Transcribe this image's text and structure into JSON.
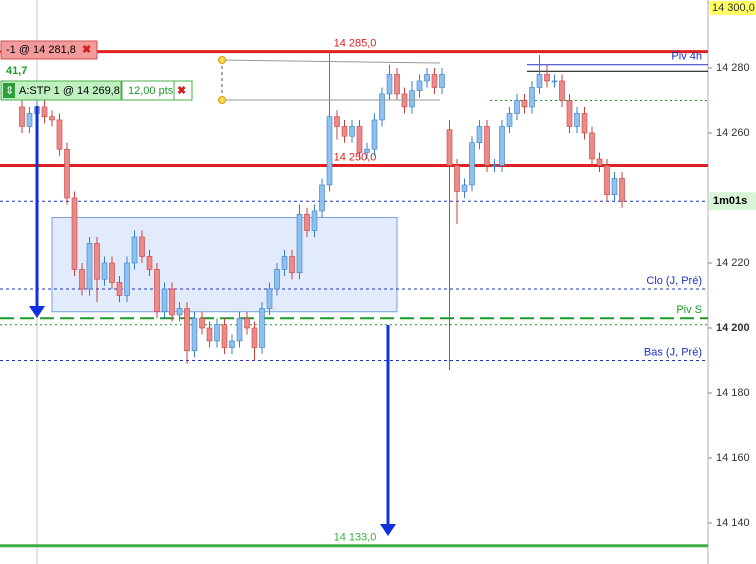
{
  "chart_data": {
    "type": "candlestick",
    "ylim": [
      14127.4,
      14300.9
    ],
    "yticks": [
      {
        "value": 14300,
        "label": "14 300,0"
      },
      {
        "value": 14280,
        "label": "14 280"
      },
      {
        "value": 14260,
        "label": "14 260"
      },
      {
        "value": 14220,
        "label": "14 220"
      },
      {
        "value": 14200,
        "label": "14 200"
      },
      {
        "value": 14180,
        "label": "14 180"
      },
      {
        "value": 14160,
        "label": "14 160"
      },
      {
        "value": 14140,
        "label": "14 140"
      }
    ],
    "up_color": "#8fc1ee",
    "down_color": "#ec8a8a",
    "open": [
      14268,
      14262,
      14266,
      14268,
      14265,
      14264,
      14255,
      14240,
      14218,
      14212,
      14226,
      14215,
      14220,
      14214,
      14210,
      14220,
      14228,
      14222,
      14218,
      14205,
      14212,
      14204,
      14206,
      14193,
      14203,
      14200,
      14196,
      14201,
      14194,
      14196,
      14203,
      14200,
      14194,
      14206,
      14212,
      14218,
      14222,
      14217,
      14235,
      14230,
      14236,
      14244,
      14265,
      14262,
      14259,
      14262,
      14254,
      14255,
      14264,
      14272,
      14278,
      14272,
      14268,
      14273,
      14276,
      14278,
      14274,
      14261,
      14250,
      14242,
      14244,
      14257,
      14262,
      14250,
      14250,
      14262,
      14266,
      14270,
      14268,
      14274,
      14278,
      14276,
      14276,
      14270,
      14262,
      14266,
      14260,
      14252,
      14250,
      14241,
      14246
    ],
    "high": [
      14270,
      14268,
      14270,
      14270,
      14267,
      14266,
      14257,
      14242,
      14220,
      14228,
      14228,
      14222,
      14222,
      14216,
      14222,
      14230,
      14230,
      14224,
      14220,
      14214,
      14214,
      14208,
      14208,
      14205,
      14205,
      14202,
      14203,
      14203,
      14198,
      14205,
      14205,
      14202,
      14208,
      14214,
      14220,
      14224,
      14224,
      14238,
      14237,
      14238,
      14246,
      14285,
      14267,
      14264,
      14264,
      14264,
      14257,
      14266,
      14274,
      14281,
      14280,
      14274,
      14276,
      14278,
      14280,
      14280,
      14280,
      14264,
      14252,
      14246,
      14259,
      14264,
      14264,
      14252,
      14264,
      14268,
      14272,
      14272,
      14276,
      14284,
      14281,
      14278,
      14278,
      14272,
      14268,
      14268,
      14262,
      14254,
      14252,
      14248,
      14248
    ],
    "low": [
      14260,
      14260,
      14264,
      14263,
      14262,
      14253,
      14238,
      14216,
      14210,
      14210,
      14208,
      14213,
      14212,
      14208,
      14208,
      14218,
      14220,
      14216,
      14203,
      14203,
      14202,
      14202,
      14189,
      14191,
      14198,
      14194,
      14194,
      14192,
      14192,
      14194,
      14198,
      14190,
      14192,
      14204,
      14210,
      14216,
      14215,
      14215,
      14228,
      14228,
      14234,
      14242,
      14258,
      14257,
      14257,
      14252,
      14252,
      14253,
      14262,
      14270,
      14270,
      14266,
      14266,
      14271,
      14274,
      14272,
      14272,
      14187,
      14232,
      14240,
      14242,
      14255,
      14248,
      14248,
      14248,
      14260,
      14264,
      14266,
      14266,
      14272,
      14274,
      14274,
      14268,
      14260,
      14260,
      14258,
      14250,
      14248,
      14239,
      14239,
      14237
    ],
    "close": [
      14262,
      14266,
      14268,
      14265,
      14264,
      14255,
      14240,
      14218,
      14212,
      14226,
      14215,
      14220,
      14214,
      14210,
      14220,
      14228,
      14222,
      14218,
      14205,
      14212,
      14204,
      14206,
      14193,
      14203,
      14200,
      14196,
      14201,
      14194,
      14196,
      14203,
      14200,
      14194,
      14206,
      14212,
      14218,
      14222,
      14217,
      14235,
      14230,
      14236,
      14244,
      14265,
      14262,
      14259,
      14262,
      14254,
      14255,
      14264,
      14272,
      14278,
      14272,
      14268,
      14273,
      14276,
      14278,
      14274,
      14278,
      14250,
      14242,
      14244,
      14257,
      14262,
      14250,
      14250,
      14262,
      14266,
      14270,
      14268,
      14274,
      14278,
      14276,
      14276,
      14270,
      14262,
      14266,
      14260,
      14252,
      14250,
      14241,
      14246,
      14239
    ],
    "countdown": "1m01s",
    "zone": {
      "top": 14234,
      "bottom": 14205,
      "color": "#dbe6fb"
    },
    "levels": [
      {
        "value": 14285,
        "value_label": "14 285,0",
        "color": "#e02020",
        "style": "solid"
      },
      {
        "value": 14250,
        "value_label": "14 250,0",
        "color": "#e02020",
        "style": "solid"
      },
      {
        "value": 14133,
        "value_label": "14 133,0",
        "color": "#3cb043",
        "style": "solid"
      },
      {
        "value": 14212,
        "label": "Clo (J, Pré)",
        "color": "#2030c0",
        "style": "dash"
      },
      {
        "value": 14190,
        "label": "Bas (J, Pré)",
        "color": "#2030c0",
        "style": "dash"
      },
      {
        "value": 14203,
        "label": "Piv S",
        "color": "#1e9a2a",
        "style": "longdash"
      },
      {
        "value": 14201,
        "color": "#1e9a2a",
        "style": "dot"
      },
      {
        "value": 14281,
        "label": "Piv 4h",
        "color": "#2030c0",
        "style": "solid"
      },
      {
        "value": 14279,
        "color": "#000000",
        "style": "solid"
      },
      {
        "value": 14270,
        "color": "#1e9a2a",
        "style": "dot"
      }
    ]
  },
  "orders": {
    "sell": "-1 @ 14 281,8",
    "points": "41,7",
    "stop": "A:STP 1 @ 14 269,8",
    "distance": "12,00 pts"
  }
}
